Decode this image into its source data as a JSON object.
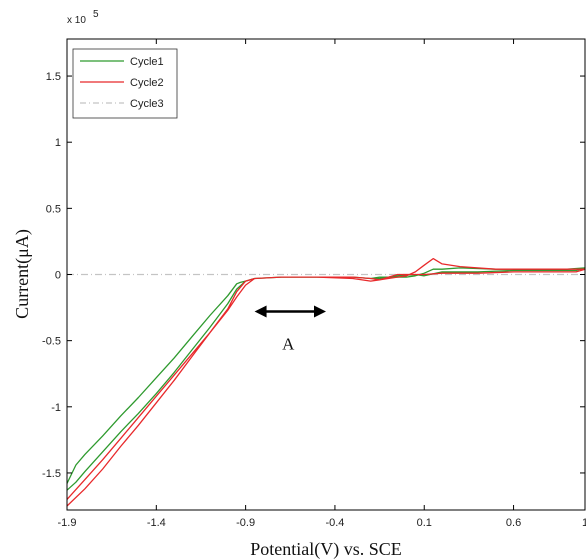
{
  "chart_data": {
    "type": "line",
    "xlabel": "Potential(V) vs. SCE",
    "ylabel": "Current(μA)",
    "y_multiplier": "x 10",
    "y_multiplier_exponent": "5",
    "xlim": [
      -1.9,
      1.0
    ],
    "ylim": [
      -1.78,
      1.78
    ],
    "x_ticks": [
      -1.9,
      -1.4,
      -0.9,
      -0.4,
      0.1,
      0.6,
      1
    ],
    "x_tick_labels": [
      "-1.9",
      "-1.4",
      "-0.9",
      "-0.4",
      "0.1",
      "0.6",
      "1"
    ],
    "y_ticks": [
      -1.5,
      -1,
      -0.5,
      0,
      0.5,
      1,
      1.5
    ],
    "y_tick_labels": [
      "-1.5",
      "-1",
      "-0.5",
      "0",
      "0.5",
      "1",
      "1.5"
    ],
    "grid": false,
    "legend_placement": "top-left",
    "annotation": {
      "text": "A",
      "arrow_from_x": -0.85,
      "arrow_to_x": -0.45,
      "arrow_y": -0.28
    },
    "series": [
      {
        "name": "Cycle1",
        "color": "#2e9a2e",
        "x": [
          -1.9,
          -1.85,
          -1.8,
          -1.7,
          -1.6,
          -1.5,
          -1.4,
          -1.3,
          -1.2,
          -1.1,
          -1.0,
          -0.95,
          -0.93,
          -0.9,
          -0.85,
          -0.7,
          -0.5,
          -0.3,
          -0.2,
          -0.15,
          -0.05,
          0.0,
          0.05,
          0.1,
          0.15,
          0.2,
          0.3,
          0.5,
          0.7,
          0.9,
          1.0,
          0.95,
          0.8,
          0.6,
          0.4,
          0.2,
          0.1,
          0.05,
          -0.05,
          -0.15,
          -0.2,
          -0.3,
          -0.5,
          -0.7,
          -0.85,
          -0.9,
          -0.95,
          -1.0,
          -1.1,
          -1.2,
          -1.3,
          -1.4,
          -1.5,
          -1.6,
          -1.7,
          -1.8,
          -1.85,
          -1.9
        ],
        "y": [
          -1.58,
          -1.44,
          -1.36,
          -1.22,
          -1.07,
          -0.93,
          -0.78,
          -0.63,
          -0.47,
          -0.31,
          -0.16,
          -0.07,
          -0.06,
          -0.05,
          -0.03,
          -0.02,
          -0.02,
          -0.02,
          -0.03,
          -0.02,
          -0.02,
          -0.02,
          -0.01,
          0.01,
          0.04,
          0.04,
          0.05,
          0.04,
          0.04,
          0.04,
          0.05,
          0.03,
          0.03,
          0.03,
          0.02,
          0.02,
          -0.01,
          0.0,
          -0.01,
          -0.03,
          -0.03,
          -0.02,
          -0.02,
          -0.02,
          -0.03,
          -0.05,
          -0.11,
          -0.22,
          -0.4,
          -0.57,
          -0.74,
          -0.9,
          -1.05,
          -1.19,
          -1.34,
          -1.49,
          -1.57,
          -1.63
        ]
      },
      {
        "name": "Cycle2",
        "color": "#e8292b",
        "x": [
          -1.9,
          -1.8,
          -1.7,
          -1.6,
          -1.5,
          -1.4,
          -1.3,
          -1.2,
          -1.1,
          -1.0,
          -0.95,
          -0.9,
          -0.85,
          -0.7,
          -0.5,
          -0.3,
          -0.2,
          -0.15,
          -0.05,
          0.0,
          0.05,
          0.1,
          0.15,
          0.2,
          0.3,
          0.5,
          0.7,
          0.9,
          1.0,
          0.95,
          0.8,
          0.6,
          0.4,
          0.2,
          0.1,
          0.05,
          -0.05,
          -0.15,
          -0.2,
          -0.3,
          -0.5,
          -0.7,
          -0.85,
          -0.9,
          -0.95,
          -1.0,
          -1.1,
          -1.2,
          -1.3,
          -1.4,
          -1.5,
          -1.6,
          -1.7,
          -1.8,
          -1.9
        ],
        "y": [
          -1.7,
          -1.55,
          -1.4,
          -1.24,
          -1.08,
          -0.92,
          -0.76,
          -0.6,
          -0.44,
          -0.27,
          -0.17,
          -0.08,
          -0.03,
          -0.02,
          -0.02,
          -0.02,
          -0.03,
          -0.04,
          -0.02,
          -0.01,
          0.02,
          0.07,
          0.12,
          0.08,
          0.06,
          0.04,
          0.04,
          0.04,
          0.04,
          0.02,
          0.02,
          0.02,
          0.01,
          0.01,
          0.0,
          0.0,
          0.0,
          -0.04,
          -0.05,
          -0.03,
          -0.02,
          -0.02,
          -0.03,
          -0.05,
          -0.13,
          -0.26,
          -0.44,
          -0.62,
          -0.8,
          -0.97,
          -1.14,
          -1.3,
          -1.47,
          -1.62,
          -1.75
        ]
      },
      {
        "name": "Cycle3",
        "color": "#c4c4c4",
        "x": [
          -1.9,
          1.0
        ],
        "y": [
          0.0,
          0.0
        ]
      }
    ]
  }
}
